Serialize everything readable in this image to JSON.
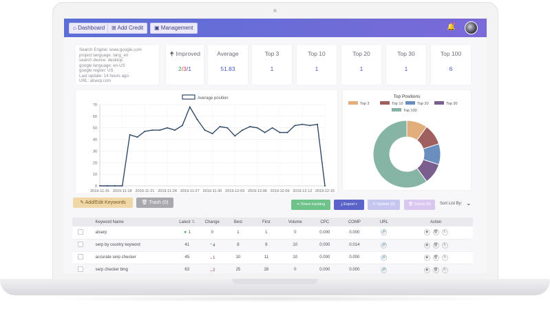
{
  "nav": {
    "dashboard": "Dashboard",
    "add_credit": "Add Credit",
    "management": "Management"
  },
  "info": {
    "lines": [
      "Search Engine: www.google.com",
      "project language: lang_en",
      "search device: desktop",
      "google language: en-US",
      "google region: US",
      "Last update: 14 hours ago",
      "URL: atserp.com"
    ]
  },
  "stats": [
    {
      "label": "Improved",
      "value_parts": [
        "2",
        "/3",
        "/1"
      ]
    },
    {
      "label": "Average",
      "value": "51.83"
    },
    {
      "label": "Top 3",
      "value": "1"
    },
    {
      "label": "Top 10",
      "value": "1"
    },
    {
      "label": "Top 20",
      "value": "1"
    },
    {
      "label": "Top 30",
      "value": "1"
    },
    {
      "label": "Top 100",
      "value": "6"
    }
  ],
  "colors": {
    "accent": "#6a6ad6",
    "line": "#2f4866",
    "improved_green": "#3aa55a",
    "declined_red": "#d64545"
  },
  "chart_data": [
    {
      "type": "line",
      "legend": [
        "Average position"
      ],
      "ylim": [
        0,
        70
      ],
      "yticks": [
        0,
        10,
        20,
        30,
        40,
        50,
        60,
        70
      ],
      "x_tick_labels": [
        "2019-11-15",
        "2019-11-18",
        "2019-11-21",
        "2019-11-24",
        "2019-11-27",
        "2019-11-30",
        "2019-12-03",
        "2019-12-06",
        "2019-12-09",
        "2019-12-12",
        "2019-12-15"
      ],
      "x": [
        "2019-11-15",
        "2019-11-16",
        "2019-11-17",
        "2019-11-18",
        "2019-11-19",
        "2019-11-20",
        "2019-11-21",
        "2019-11-22",
        "2019-11-23",
        "2019-11-24",
        "2019-11-25",
        "2019-11-26",
        "2019-11-27",
        "2019-11-28",
        "2019-11-29",
        "2019-11-30",
        "2019-12-01",
        "2019-12-02",
        "2019-12-03",
        "2019-12-04",
        "2019-12-05",
        "2019-12-06",
        "2019-12-07",
        "2019-12-08",
        "2019-12-09",
        "2019-12-10",
        "2019-12-11",
        "2019-12-12",
        "2019-12-13",
        "2019-12-14",
        "2019-12-15"
      ],
      "series": [
        {
          "name": "Average position",
          "values": [
            0,
            0,
            0,
            0,
            44,
            42,
            47,
            48,
            48,
            50,
            48,
            52,
            68,
            57,
            48,
            45,
            51,
            50,
            43,
            48,
            51,
            50,
            46,
            50,
            46,
            46,
            52,
            53,
            52,
            53,
            0
          ]
        }
      ]
    },
    {
      "type": "pie",
      "title": "Top Positions",
      "style": "doughnut",
      "legend_placement": "top",
      "categories": [
        "Top 3",
        "Top 10",
        "Top 20",
        "Top 30",
        "Top 100"
      ],
      "values": [
        1,
        1,
        1,
        1,
        6
      ],
      "colors": [
        "#e2ae7c",
        "#a05f5f",
        "#6a8fbe",
        "#7a5f8e",
        "#86b5a5"
      ]
    }
  ],
  "actions": {
    "add_edit": "Add/Edit Keywords",
    "trash": "Trash (0)",
    "share": "Share tracking",
    "export": "Export",
    "update": "Update (0)",
    "delete": "Delete (0)",
    "sort_label": "Sort List By:"
  },
  "table": {
    "headers": [
      "Keyword Name",
      "Latest",
      "Change",
      "Best",
      "First",
      "Volume",
      "CPC",
      "COMP",
      "URL",
      "Action"
    ],
    "rows": [
      {
        "keyword": "atserp",
        "latest": "1",
        "change": "0",
        "change_dir": "none",
        "latest_star": true,
        "best": "1",
        "first": "1",
        "volume": "0",
        "cpc": "0.000",
        "comp": "0.000"
      },
      {
        "keyword": "serp by country keyword",
        "latest": "41",
        "change": "4",
        "change_dir": "up",
        "latest_star": false,
        "best": "8",
        "first": "9",
        "volume": "10",
        "cpc": "0.000",
        "comp": "0.014"
      },
      {
        "keyword": "accurate serp checker",
        "latest": "45",
        "change": "1",
        "change_dir": "down",
        "latest_star": false,
        "best": "10",
        "first": "11",
        "volume": "10",
        "cpc": "0.000",
        "comp": "0.000"
      },
      {
        "keyword": "serp checker bing",
        "latest": "63",
        "change": "2",
        "change_dir": "down",
        "latest_star": false,
        "best": "25",
        "first": "28",
        "volume": "0",
        "cpc": "0.000",
        "comp": "0.000"
      }
    ]
  }
}
